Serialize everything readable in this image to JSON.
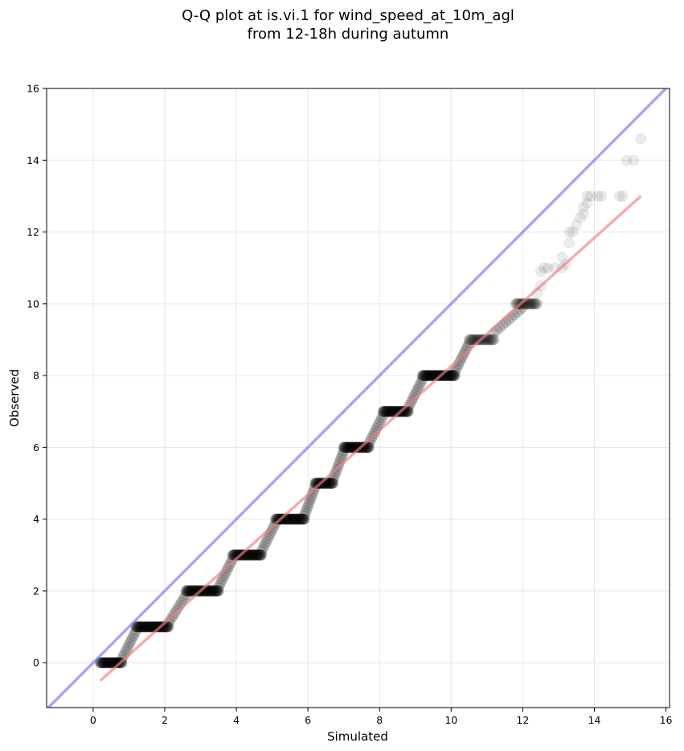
{
  "chart_data": {
    "type": "scatter",
    "title": "Q-Q plot at is.vi.1 for wind_speed_at_10m_agl",
    "subtitle": "from 12-18h during autumn",
    "xlabel": "Simulated",
    "ylabel": "Observed",
    "xlim": [
      -1.3,
      16.1
    ],
    "ylim": [
      -1.25,
      16
    ],
    "xticks": [
      0,
      2,
      4,
      6,
      8,
      10,
      12,
      14,
      16
    ],
    "yticks": [
      0,
      2,
      4,
      6,
      8,
      10,
      12,
      14,
      16
    ],
    "grid": true,
    "series": [
      {
        "kind": "points",
        "color": "#000000",
        "segments": [
          {
            "type": "flat",
            "x0": 0.2,
            "x1": 0.8,
            "y": 0
          },
          {
            "type": "rise",
            "x0": 0.8,
            "x1": 1.2,
            "y0": 0.1,
            "y1": 0.9
          },
          {
            "type": "flat",
            "x0": 1.2,
            "x1": 2.1,
            "y": 1
          },
          {
            "type": "rise",
            "x0": 2.1,
            "x1": 2.6,
            "y0": 1.1,
            "y1": 1.9
          },
          {
            "type": "flat",
            "x0": 2.6,
            "x1": 3.5,
            "y": 2
          },
          {
            "type": "rise",
            "x0": 3.5,
            "x1": 3.9,
            "y0": 2.1,
            "y1": 2.9
          },
          {
            "type": "flat",
            "x0": 3.9,
            "x1": 4.7,
            "y": 3
          },
          {
            "type": "rise",
            "x0": 4.7,
            "x1": 5.1,
            "y0": 3.1,
            "y1": 3.9
          },
          {
            "type": "flat",
            "x0": 5.1,
            "x1": 5.9,
            "y": 4
          },
          {
            "type": "rise",
            "x0": 5.9,
            "x1": 6.2,
            "y0": 4.1,
            "y1": 4.9
          },
          {
            "type": "flat",
            "x0": 6.2,
            "x1": 6.7,
            "y": 5
          },
          {
            "type": "rise",
            "x0": 6.7,
            "x1": 7.0,
            "y0": 5.1,
            "y1": 5.9
          },
          {
            "type": "flat",
            "x0": 7.0,
            "x1": 7.7,
            "y": 6
          },
          {
            "type": "rise",
            "x0": 7.7,
            "x1": 8.1,
            "y0": 6.1,
            "y1": 6.9
          },
          {
            "type": "flat",
            "x0": 8.1,
            "x1": 8.8,
            "y": 7
          },
          {
            "type": "rise",
            "x0": 8.8,
            "x1": 9.2,
            "y0": 7.1,
            "y1": 7.9
          },
          {
            "type": "flat",
            "x0": 9.2,
            "x1": 10.1,
            "y": 8
          },
          {
            "type": "rise",
            "x0": 10.1,
            "x1": 10.5,
            "y0": 8.1,
            "y1": 8.9
          },
          {
            "type": "flat",
            "x0": 10.5,
            "x1": 11.2,
            "y": 9
          },
          {
            "type": "rise",
            "x0": 11.2,
            "x1": 12.0,
            "y0": 9.2,
            "y1": 9.9
          },
          {
            "type": "flat",
            "x0": 11.8,
            "x1": 12.4,
            "y": 10
          }
        ],
        "sparse_points": [
          [
            12.4,
            10.3
          ],
          [
            12.5,
            10.5
          ],
          [
            12.5,
            10.9
          ],
          [
            12.6,
            11.0
          ],
          [
            12.7,
            11.0
          ],
          [
            12.9,
            11.0
          ],
          [
            13.1,
            11.0
          ],
          [
            13.2,
            11.1
          ],
          [
            13.1,
            11.3
          ],
          [
            13.3,
            11.7
          ],
          [
            13.3,
            12.0
          ],
          [
            13.4,
            12.0
          ],
          [
            13.5,
            12.2
          ],
          [
            13.6,
            12.4
          ],
          [
            13.7,
            12.5
          ],
          [
            13.7,
            12.7
          ],
          [
            13.8,
            12.8
          ],
          [
            13.8,
            13.0
          ],
          [
            13.9,
            13.0
          ],
          [
            14.1,
            13.0
          ],
          [
            14.2,
            13.0
          ],
          [
            14.7,
            13.0
          ],
          [
            14.8,
            13.0
          ],
          [
            14.9,
            14.0
          ],
          [
            15.1,
            14.0
          ],
          [
            15.3,
            14.6
          ]
        ]
      },
      {
        "kind": "identity-line",
        "color": "#6b6bea",
        "x": [
          -1.3,
          16.1
        ],
        "y": [
          -1.3,
          16.1
        ]
      },
      {
        "kind": "fit-line",
        "color": "#f08080",
        "x": [
          0.2,
          15.3
        ],
        "y": [
          -0.5,
          13.0
        ]
      }
    ]
  }
}
